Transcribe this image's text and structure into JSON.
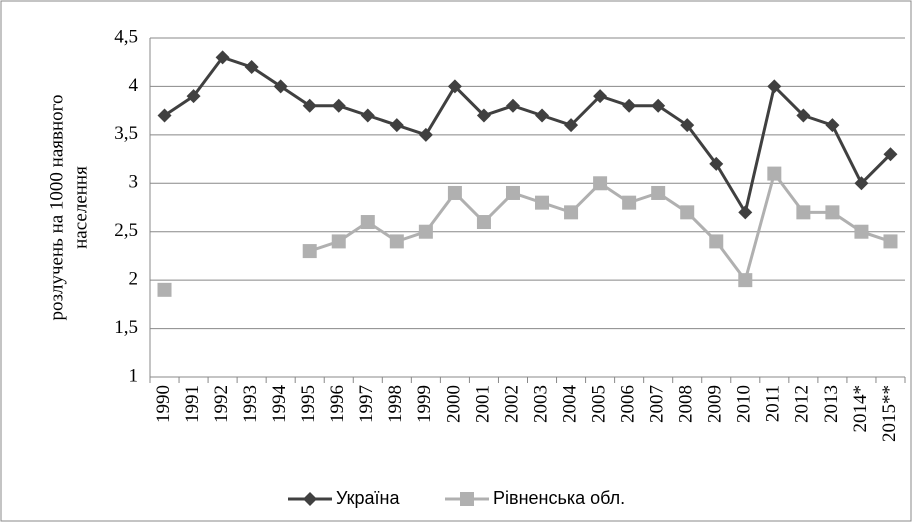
{
  "chart_data": {
    "type": "line",
    "ylabel": [
      "розлучень на 1000 наявного",
      "населення"
    ],
    "categories": [
      "1990",
      "1991",
      "1992",
      "1993",
      "1994",
      "1995",
      "1996",
      "1997",
      "1998",
      "1999",
      "2000",
      "2001",
      "2002",
      "2003",
      "2004",
      "2005",
      "2006",
      "2007",
      "2008",
      "2009",
      "2010",
      "2011",
      "2012",
      "2013",
      "2014*",
      "2015**"
    ],
    "series": [
      {
        "name": "Україна",
        "color": "#404040",
        "marker": "diamond",
        "values": [
          3.7,
          3.9,
          4.3,
          4.2,
          4.0,
          3.8,
          3.8,
          3.7,
          3.6,
          3.5,
          4.0,
          3.7,
          3.8,
          3.7,
          3.6,
          3.9,
          3.8,
          3.8,
          3.6,
          3.2,
          2.7,
          4.0,
          3.7,
          3.6,
          3.0,
          3.3
        ]
      },
      {
        "name": "Рівненська обл.",
        "color": "#b0b0b0",
        "marker": "square",
        "values": [
          1.9,
          null,
          null,
          null,
          null,
          2.3,
          2.4,
          2.6,
          2.4,
          2.5,
          2.9,
          2.6,
          2.9,
          2.8,
          2.7,
          3.0,
          2.8,
          2.9,
          2.7,
          2.4,
          2.0,
          3.1,
          2.7,
          2.7,
          2.5,
          2.4
        ]
      }
    ],
    "ylim": [
      1,
      4.5
    ],
    "yticks": [
      1,
      {
        "value": 1.5,
        "label": "1,5"
      },
      2,
      {
        "value": 2.5,
        "label": "2,5"
      },
      3,
      {
        "value": 3.5,
        "label": "3,5"
      },
      4,
      {
        "value": 4.5,
        "label": "4,5"
      }
    ],
    "grid": true,
    "legend": "bottom"
  }
}
